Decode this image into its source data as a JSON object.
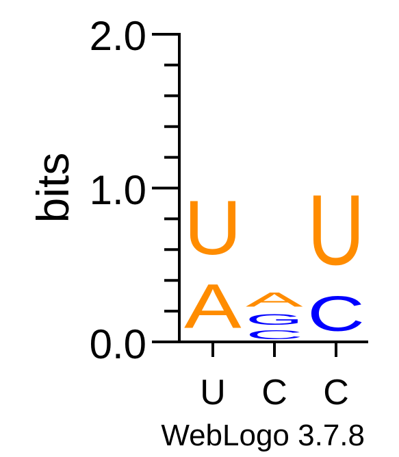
{
  "chart_data": {
    "type": "sequence-logo",
    "ylabel": "bits",
    "ylim": [
      0,
      2
    ],
    "yticks": [
      "0.0",
      "1.0",
      "2.0"
    ],
    "xticks": [
      "U",
      "C",
      "C"
    ],
    "footer": "WebLogo 3.7.8",
    "colors": {
      "A": "#ff8c00",
      "U": "#ff8c00",
      "G": "#0000ff",
      "C": "#0000ff"
    },
    "positions": [
      {
        "label": "U",
        "letters": [
          {
            "base": "A",
            "bits": 0.46
          },
          {
            "base": "U",
            "bits": 0.56
          }
        ]
      },
      {
        "label": "C",
        "letters": [
          {
            "base": "C",
            "bits": 0.09
          },
          {
            "base": "G",
            "bits": 0.11
          },
          {
            "base": "A",
            "bits": 0.15
          }
        ]
      },
      {
        "label": "C",
        "letters": [
          {
            "base": "C",
            "bits": 0.36
          },
          {
            "base": "U",
            "bits": 0.73
          }
        ]
      }
    ]
  }
}
